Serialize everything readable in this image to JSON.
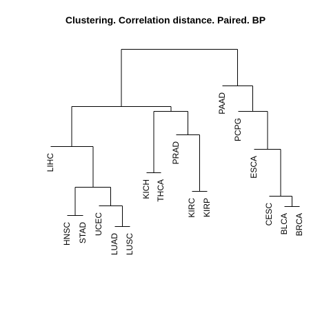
{
  "title": "Clustering. Correlation distance. Paired. BP",
  "dendrogram": {
    "leaves": [
      "LIHC",
      "HNSC",
      "STAD",
      "UCEC",
      "LUAD",
      "LUSC",
      "KICH",
      "THCA",
      "PRAD",
      "KIRC",
      "KIRP",
      "PAAD",
      "PCPG",
      "ESCA",
      "CESC",
      "BLCA",
      "BRCA"
    ]
  }
}
